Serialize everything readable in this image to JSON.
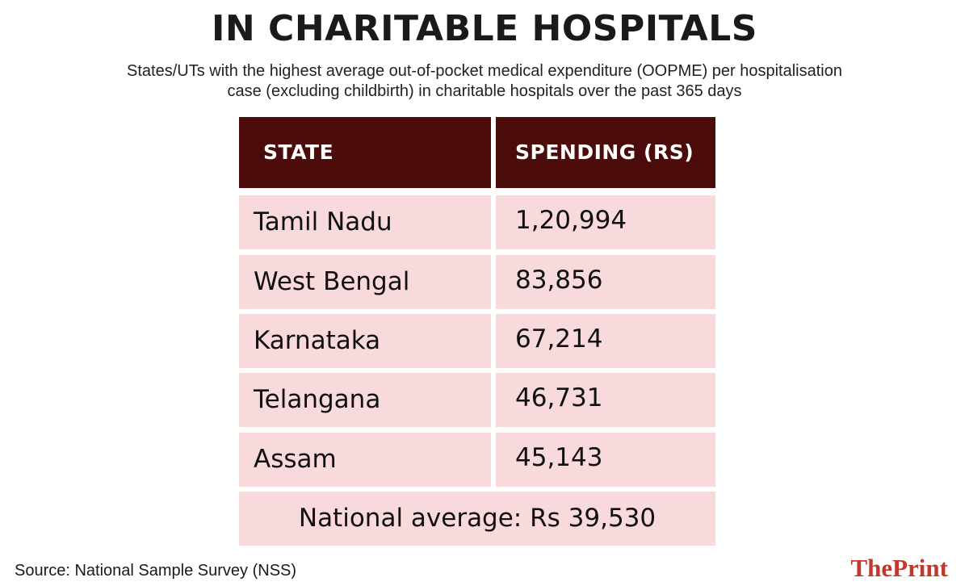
{
  "title": "IN CHARITABLE HOSPITALS",
  "subtitle": {
    "line1": "States/UTs with the highest average out-of-pocket medical expenditure (OOPME) per hospitalisation",
    "line2": "case (excluding childbirth) in charitable hospitals over the past 365 days"
  },
  "table": {
    "headers": [
      "STATE",
      "SPENDING (RS)"
    ],
    "rows": [
      [
        "Tamil Nadu",
        "1,20,994"
      ],
      [
        "West Bengal",
        "83,856"
      ],
      [
        "Karnataka",
        "67,214"
      ],
      [
        "Telangana",
        "46,731"
      ],
      [
        "Assam",
        "45,143"
      ]
    ],
    "national_average": "National average: Rs 39,530"
  },
  "source": "Source: National Sample Survey (NSS)",
  "brand": "ThePrint",
  "colors": {
    "header_bg": "#4d0c0c",
    "row_bg": "#f8d9dc",
    "brand": "#c0392b"
  },
  "chart_data": {
    "type": "table",
    "title": "IN CHARITABLE HOSPITALS",
    "columns": [
      "STATE",
      "SPENDING (RS)"
    ],
    "categories": [
      "Tamil Nadu",
      "West Bengal",
      "Karnataka",
      "Telangana",
      "Assam"
    ],
    "values": [
      120994,
      83856,
      67214,
      46731,
      45143
    ],
    "national_average": 39530
  }
}
